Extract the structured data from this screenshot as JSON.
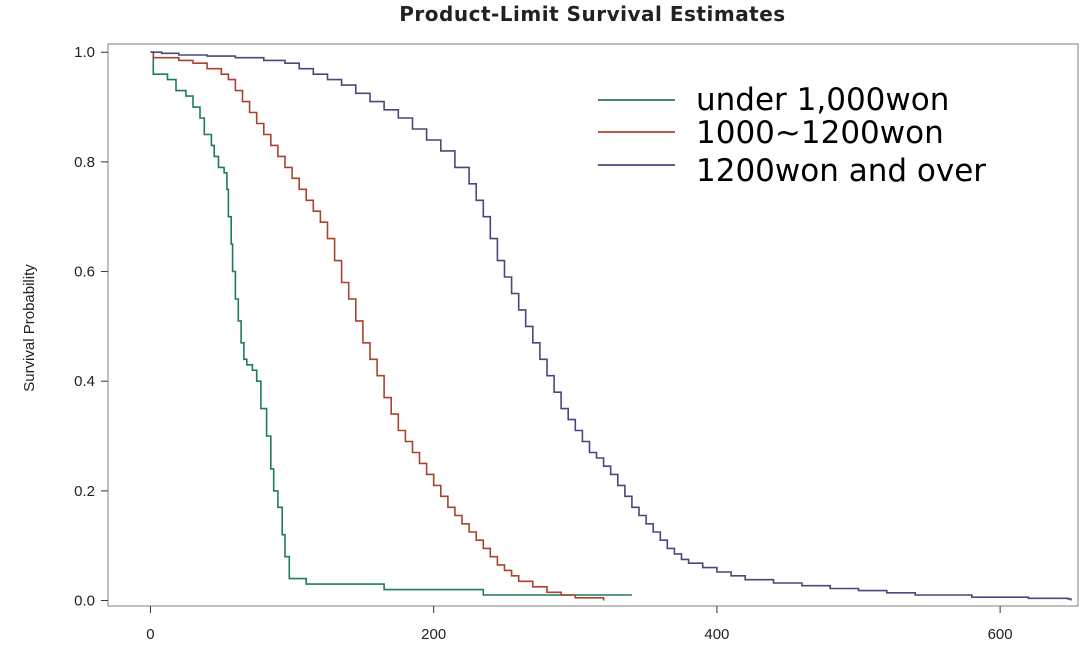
{
  "chart_data": {
    "type": "line",
    "step": true,
    "title": "Product-Limit Survival Estimates",
    "xlabel": "",
    "ylabel": "Survival Probability",
    "xlim": [
      -30,
      655
    ],
    "ylim": [
      -0.01,
      1.015
    ],
    "xticks": [
      0,
      200,
      400,
      600
    ],
    "xtick_labels": [
      "0",
      "200",
      "400",
      "600"
    ],
    "yticks": [
      0.0,
      0.2,
      0.4,
      0.6,
      0.8,
      1.0
    ],
    "ytick_labels": [
      "0.0",
      "0.2",
      "0.4",
      "0.6",
      "0.8",
      "1.0"
    ],
    "grid": false,
    "legend_position": "top-right",
    "series": [
      {
        "name": "under 1,000won",
        "color": "#1f7a64",
        "points": [
          [
            0,
            1.0
          ],
          [
            2,
            0.96
          ],
          [
            12,
            0.95
          ],
          [
            18,
            0.93
          ],
          [
            25,
            0.92
          ],
          [
            30,
            0.9
          ],
          [
            35,
            0.88
          ],
          [
            38,
            0.85
          ],
          [
            43,
            0.83
          ],
          [
            45,
            0.81
          ],
          [
            48,
            0.79
          ],
          [
            52,
            0.78
          ],
          [
            54,
            0.75
          ],
          [
            55,
            0.7
          ],
          [
            57,
            0.65
          ],
          [
            58,
            0.6
          ],
          [
            60,
            0.55
          ],
          [
            62,
            0.51
          ],
          [
            64,
            0.47
          ],
          [
            66,
            0.44
          ],
          [
            68,
            0.43
          ],
          [
            72,
            0.42
          ],
          [
            75,
            0.4
          ],
          [
            78,
            0.35
          ],
          [
            82,
            0.3
          ],
          [
            85,
            0.24
          ],
          [
            87,
            0.2
          ],
          [
            90,
            0.17
          ],
          [
            93,
            0.12
          ],
          [
            95,
            0.08
          ],
          [
            98,
            0.04
          ],
          [
            110,
            0.03
          ],
          [
            165,
            0.02
          ],
          [
            235,
            0.01
          ],
          [
            340,
            0.01
          ]
        ]
      },
      {
        "name": "1000~1200won",
        "color": "#a8442e",
        "points": [
          [
            0,
            1.0
          ],
          [
            2,
            0.99
          ],
          [
            20,
            0.985
          ],
          [
            30,
            0.98
          ],
          [
            40,
            0.97
          ],
          [
            50,
            0.96
          ],
          [
            55,
            0.95
          ],
          [
            60,
            0.93
          ],
          [
            65,
            0.91
          ],
          [
            70,
            0.89
          ],
          [
            75,
            0.87
          ],
          [
            80,
            0.85
          ],
          [
            85,
            0.83
          ],
          [
            90,
            0.81
          ],
          [
            95,
            0.79
          ],
          [
            100,
            0.77
          ],
          [
            105,
            0.75
          ],
          [
            110,
            0.73
          ],
          [
            115,
            0.71
          ],
          [
            120,
            0.69
          ],
          [
            125,
            0.66
          ],
          [
            130,
            0.62
          ],
          [
            135,
            0.58
          ],
          [
            140,
            0.55
          ],
          [
            145,
            0.51
          ],
          [
            150,
            0.47
          ],
          [
            155,
            0.44
          ],
          [
            160,
            0.41
          ],
          [
            165,
            0.37
          ],
          [
            170,
            0.34
          ],
          [
            175,
            0.31
          ],
          [
            180,
            0.29
          ],
          [
            185,
            0.27
          ],
          [
            190,
            0.25
          ],
          [
            195,
            0.23
          ],
          [
            200,
            0.21
          ],
          [
            205,
            0.19
          ],
          [
            210,
            0.17
          ],
          [
            215,
            0.155
          ],
          [
            220,
            0.14
          ],
          [
            225,
            0.125
          ],
          [
            230,
            0.11
          ],
          [
            235,
            0.095
          ],
          [
            240,
            0.08
          ],
          [
            245,
            0.065
          ],
          [
            250,
            0.055
          ],
          [
            255,
            0.045
          ],
          [
            260,
            0.035
          ],
          [
            270,
            0.025
          ],
          [
            280,
            0.015
          ],
          [
            290,
            0.01
          ],
          [
            300,
            0.005
          ],
          [
            320,
            0.0
          ]
        ]
      },
      {
        "name": "1200won and over",
        "color": "#47497a",
        "points": [
          [
            0,
            1.0
          ],
          [
            8,
            0.998
          ],
          [
            20,
            0.995
          ],
          [
            40,
            0.993
          ],
          [
            60,
            0.99
          ],
          [
            80,
            0.985
          ],
          [
            95,
            0.98
          ],
          [
            105,
            0.97
          ],
          [
            115,
            0.96
          ],
          [
            125,
            0.95
          ],
          [
            135,
            0.94
          ],
          [
            145,
            0.925
          ],
          [
            155,
            0.91
          ],
          [
            165,
            0.895
          ],
          [
            175,
            0.88
          ],
          [
            185,
            0.86
          ],
          [
            195,
            0.84
          ],
          [
            205,
            0.82
          ],
          [
            215,
            0.79
          ],
          [
            225,
            0.76
          ],
          [
            230,
            0.73
          ],
          [
            235,
            0.7
          ],
          [
            240,
            0.66
          ],
          [
            245,
            0.62
          ],
          [
            250,
            0.59
          ],
          [
            255,
            0.56
          ],
          [
            260,
            0.53
          ],
          [
            265,
            0.5
          ],
          [
            270,
            0.47
          ],
          [
            275,
            0.44
          ],
          [
            280,
            0.41
          ],
          [
            285,
            0.38
          ],
          [
            290,
            0.35
          ],
          [
            295,
            0.33
          ],
          [
            300,
            0.31
          ],
          [
            305,
            0.29
          ],
          [
            310,
            0.27
          ],
          [
            315,
            0.26
          ],
          [
            320,
            0.245
          ],
          [
            325,
            0.23
          ],
          [
            330,
            0.21
          ],
          [
            335,
            0.19
          ],
          [
            340,
            0.17
          ],
          [
            345,
            0.155
          ],
          [
            350,
            0.14
          ],
          [
            355,
            0.125
          ],
          [
            360,
            0.11
          ],
          [
            365,
            0.095
          ],
          [
            370,
            0.085
          ],
          [
            375,
            0.075
          ],
          [
            380,
            0.068
          ],
          [
            390,
            0.06
          ],
          [
            400,
            0.052
          ],
          [
            410,
            0.045
          ],
          [
            420,
            0.038
          ],
          [
            440,
            0.032
          ],
          [
            460,
            0.027
          ],
          [
            480,
            0.022
          ],
          [
            500,
            0.018
          ],
          [
            520,
            0.014
          ],
          [
            540,
            0.01
          ],
          [
            580,
            0.006
          ],
          [
            620,
            0.004
          ],
          [
            648,
            0.003
          ],
          [
            650,
            0.0
          ]
        ]
      }
    ]
  }
}
